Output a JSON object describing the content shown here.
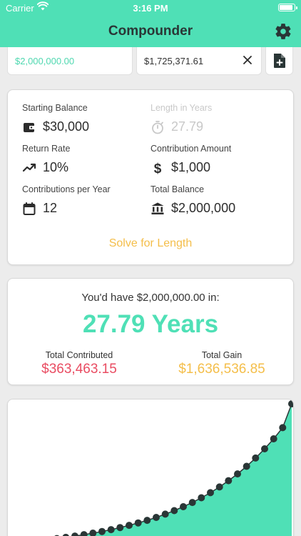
{
  "status_bar": {
    "carrier": "Carrier",
    "time": "3:16 PM"
  },
  "nav": {
    "title": "Compounder"
  },
  "tabs": {
    "tab1_value": "$2,000,000.00",
    "tab2_value": "$1,725,371.61"
  },
  "fields": {
    "starting_balance": {
      "label": "Starting Balance",
      "value": "$30,000"
    },
    "length_in_years": {
      "label": "Length in Years",
      "value": "27.79"
    },
    "return_rate": {
      "label": "Return Rate",
      "value": "10%"
    },
    "contribution_amount": {
      "label": "Contribution Amount",
      "value": "$1,000"
    },
    "contributions_per_year": {
      "label": "Contributions per Year",
      "value": "12"
    },
    "total_balance": {
      "label": "Total Balance",
      "value": "$2,000,000"
    }
  },
  "solve_button": "Solve for Length",
  "result": {
    "caption": "You'd have $2,000,000.00 in:",
    "main": "27.79 Years",
    "total_contributed_label": "Total Contributed",
    "total_contributed_value": "$363,463.15",
    "total_gain_label": "Total Gain",
    "total_gain_value": "$1,636,536.85"
  },
  "colors": {
    "accent": "#4fe0b6",
    "contributed": "#e94c62",
    "gain": "#f4be4a",
    "line": "#2a3636"
  },
  "chart_data": {
    "type": "area",
    "x": [
      1,
      2,
      3,
      4,
      5,
      6,
      7,
      8,
      9,
      10,
      11,
      12,
      13,
      14,
      15,
      16,
      17,
      18,
      19,
      20,
      21,
      22,
      23,
      24,
      25,
      26,
      27,
      28
    ],
    "y": [
      41000,
      56000,
      73000,
      92000,
      112000,
      134000,
      158000,
      185000,
      214000,
      246000,
      281000,
      319000,
      361000,
      408000,
      459000,
      515000,
      576000,
      644000,
      718000,
      800000,
      891000,
      989000,
      1098000,
      1218000,
      1350000,
      1495000,
      1656000,
      2000000
    ]
  }
}
